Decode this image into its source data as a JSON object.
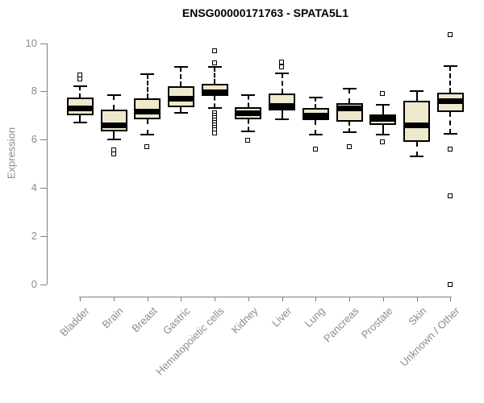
{
  "colors": {
    "box_fill": "#EEE8CD",
    "box_border": "#000000",
    "median": "#000000",
    "axis_line": "#808080",
    "tick_text": "#8C8C8C",
    "title_text": "#000000",
    "background": "#FFFFFF"
  },
  "chart_data": {
    "type": "boxplot",
    "title": "ENSG00000171763 - SPATA5L1",
    "xlabel": "",
    "ylabel": "Expression",
    "ylim": [
      0,
      10
    ],
    "yticks": [
      0,
      2,
      4,
      6,
      8,
      10
    ],
    "grid": false,
    "legend": "none",
    "categories": [
      "Bladder",
      "Brain",
      "Breast",
      "Gastric",
      "Hematopoietic cells",
      "Kidney",
      "Liver",
      "Lung",
      "Pancreas",
      "Prostate",
      "Skin",
      "Unknown / Other"
    ],
    "series": [
      {
        "label": "Bladder",
        "whisker_low": 6.7,
        "q1": 7.0,
        "median": 7.3,
        "q3": 7.75,
        "whisker_high": 8.2,
        "outliers": [
          8.65,
          8.5
        ]
      },
      {
        "label": "Brain",
        "whisker_low": 6.0,
        "q1": 6.35,
        "median": 6.6,
        "q3": 7.25,
        "whisker_high": 7.85,
        "outliers": [
          5.55,
          5.4
        ]
      },
      {
        "label": "Breast",
        "whisker_low": 6.2,
        "q1": 6.85,
        "median": 7.15,
        "q3": 7.7,
        "whisker_high": 8.7,
        "outliers": [
          5.7
        ]
      },
      {
        "label": "Gastric",
        "whisker_low": 7.1,
        "q1": 7.35,
        "median": 7.7,
        "q3": 8.2,
        "whisker_high": 9.0,
        "outliers": []
      },
      {
        "label": "Hematopoietic cells",
        "whisker_low": 7.3,
        "q1": 7.8,
        "median": 7.95,
        "q3": 8.3,
        "whisker_high": 9.0,
        "outliers": [
          9.65,
          9.15,
          7.1,
          7.0,
          6.9,
          6.8,
          6.7,
          6.6,
          6.5,
          6.4,
          6.25
        ]
      },
      {
        "label": "Kidney",
        "whisker_low": 6.35,
        "q1": 6.85,
        "median": 7.1,
        "q3": 7.35,
        "whisker_high": 7.85,
        "outliers": [
          5.95
        ]
      },
      {
        "label": "Liver",
        "whisker_low": 6.85,
        "q1": 7.2,
        "median": 7.4,
        "q3": 7.9,
        "whisker_high": 8.75,
        "outliers": [
          9.2,
          9.0
        ]
      },
      {
        "label": "Lung",
        "whisker_low": 6.2,
        "q1": 6.8,
        "median": 7.0,
        "q3": 7.3,
        "whisker_high": 7.75,
        "outliers": [
          5.6
        ]
      },
      {
        "label": "Pancreas",
        "whisker_low": 6.3,
        "q1": 6.75,
        "median": 7.3,
        "q3": 7.5,
        "whisker_high": 8.1,
        "outliers": [
          5.7
        ]
      },
      {
        "label": "Prostate",
        "whisker_low": 6.2,
        "q1": 6.6,
        "median": 6.85,
        "q3": 7.05,
        "whisker_high": 7.45,
        "outliers": [
          7.9,
          5.9
        ]
      },
      {
        "label": "Skin",
        "whisker_low": 5.3,
        "q1": 5.9,
        "median": 6.6,
        "q3": 7.6,
        "whisker_high": 8.0,
        "outliers": []
      },
      {
        "label": "Unknown / Other",
        "whisker_low": 6.25,
        "q1": 7.15,
        "median": 7.6,
        "q3": 7.95,
        "whisker_high": 9.05,
        "outliers": [
          10.35,
          5.6,
          3.65,
          0.0
        ]
      }
    ]
  }
}
